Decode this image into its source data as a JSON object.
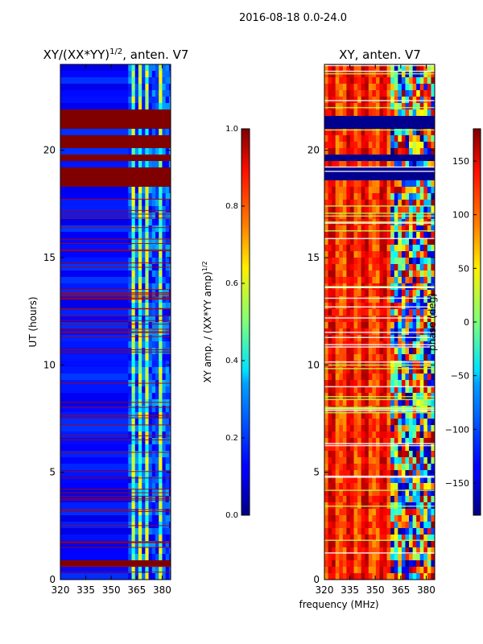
{
  "suptitle": "2016-08-18 0.0-24.0",
  "xlabel": "frequency (MHz)",
  "colors": {
    "deep_blue": "#00008f",
    "dark_red": "#800000",
    "axis": "#000000"
  },
  "chart_data": [
    {
      "type": "heatmap",
      "title_main": "XY/(XX*YY)",
      "title_exp": "1/2",
      "title_tail": ", anten. V7",
      "ylabel": "UT (hours)",
      "x_ticks": [
        320,
        335,
        350,
        365,
        380
      ],
      "x_range": [
        320,
        385
      ],
      "y_ticks": [
        0,
        5,
        10,
        15,
        20
      ],
      "y_range": [
        0,
        24
      ],
      "colorbar": {
        "label": "XY amp. / (XX*YY amp)",
        "label_exp": "1/2",
        "ticks": [
          "0.0",
          "0.2",
          "0.4",
          "0.6",
          "0.8",
          "1.0"
        ],
        "range": [
          0,
          1
        ]
      },
      "saturated_bands_hours": [
        [
          0.6,
          0.85
        ],
        [
          18.4,
          19.2
        ],
        [
          19.4,
          19.7
        ],
        [
          20.1,
          20.7
        ],
        [
          21.0,
          21.8
        ]
      ],
      "bright_channels_mhz": [
        362,
        366,
        370,
        378
      ]
    },
    {
      "type": "heatmap",
      "title": "XY, anten. V7",
      "ylabel": "",
      "x_ticks": [
        320,
        335,
        350,
        365,
        380
      ],
      "x_range": [
        320,
        385
      ],
      "y_ticks": [
        0,
        5,
        10,
        15,
        20
      ],
      "y_range": [
        0,
        24
      ],
      "colorbar": {
        "label": "phase (deg)",
        "ticks": [
          "−150",
          "−100",
          "−50",
          "0",
          "50",
          "100",
          "150"
        ],
        "tick_values": [
          -150,
          -100,
          -50,
          0,
          50,
          100,
          150
        ],
        "range": [
          -180,
          180
        ]
      },
      "flagged_bands_hours": [
        [
          18.7,
          19.3
        ],
        [
          19.5,
          19.9
        ],
        [
          21.0,
          21.7
        ]
      ]
    }
  ]
}
